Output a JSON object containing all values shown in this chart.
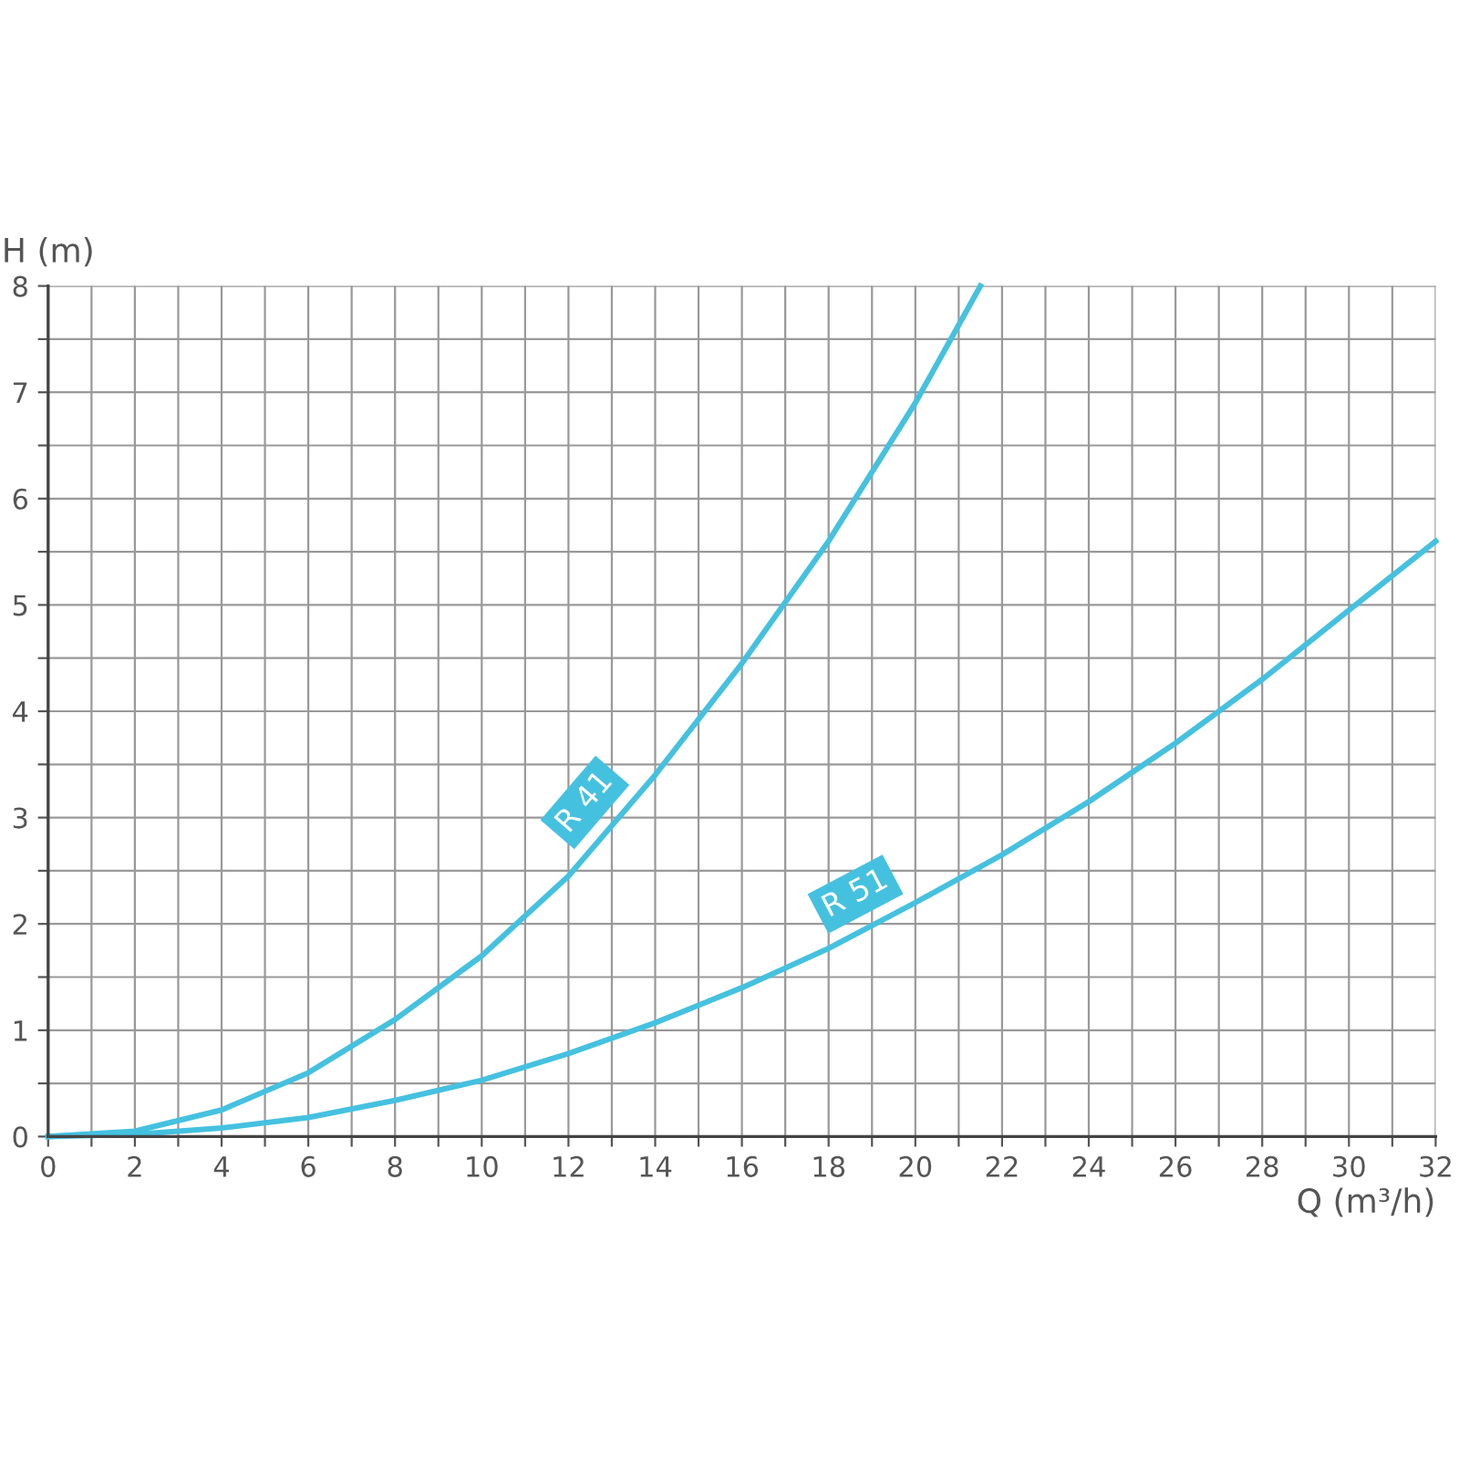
{
  "chart_data": {
    "type": "line",
    "xlabel": "Q (m³/h)",
    "ylabel": "H (m)",
    "xlim": [
      0,
      32
    ],
    "ylim": [
      0,
      8
    ],
    "xticks": [
      0,
      {
        "value": 1,
        "label": null
      },
      2,
      {
        "value": 3,
        "label": null
      },
      4,
      {
        "value": 5,
        "label": null
      },
      6,
      {
        "value": 7,
        "label": null
      },
      8,
      {
        "value": 9,
        "label": null
      },
      10,
      {
        "value": 11,
        "label": null
      },
      12,
      {
        "value": 13,
        "label": null
      },
      14,
      {
        "value": 15,
        "label": null
      },
      16,
      {
        "value": 17,
        "label": null
      },
      18,
      {
        "value": 19,
        "label": null
      },
      20,
      {
        "value": 21,
        "label": null
      },
      22,
      {
        "value": 23,
        "label": null
      },
      24,
      {
        "value": 25,
        "label": null
      },
      26,
      {
        "value": 27,
        "label": null
      },
      28,
      {
        "value": 29,
        "label": null
      },
      30,
      {
        "value": 31,
        "label": null
      },
      32
    ],
    "yticks": [
      0,
      {
        "value": 0.5,
        "label": null
      },
      1,
      {
        "value": 1.5,
        "label": null
      },
      2,
      {
        "value": 2.5,
        "label": null
      },
      3,
      {
        "value": 3.5,
        "label": null
      },
      4,
      {
        "value": 4.5,
        "label": null
      },
      5,
      {
        "value": 5.5,
        "label": null
      },
      6,
      {
        "value": 6.5,
        "label": null
      },
      7,
      {
        "value": 7.5,
        "label": null
      },
      8
    ],
    "grid": true,
    "legend": false,
    "marker": "none",
    "line_style": "solid",
    "series": [
      {
        "name": "R 41",
        "color": "#45c1e0",
        "x": [
          0,
          2,
          4,
          6,
          8,
          10,
          12,
          14,
          16,
          18,
          20,
          21.5
        ],
        "values": [
          0,
          0.05,
          0.25,
          0.6,
          1.1,
          1.7,
          2.45,
          3.4,
          4.45,
          5.6,
          6.9,
          8
        ]
      },
      {
        "name": "R 51",
        "color": "#45c1e0",
        "x": [
          0,
          2,
          4,
          6,
          8,
          10,
          12,
          14,
          16,
          18,
          20,
          22,
          24,
          26,
          28,
          30,
          32
        ],
        "values": [
          0,
          0.02,
          0.08,
          0.18,
          0.34,
          0.53,
          0.78,
          1.07,
          1.4,
          1.77,
          2.2,
          2.65,
          3.15,
          3.7,
          4.3,
          4.95,
          5.6
        ]
      }
    ]
  }
}
